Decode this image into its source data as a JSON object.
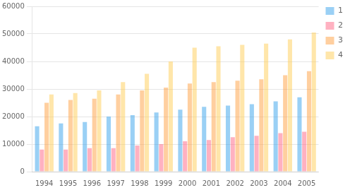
{
  "chart_data": {
    "type": "bar",
    "categories": [
      "1994",
      "1995",
      "1996",
      "1997",
      "1998",
      "1999",
      "2000",
      "2001",
      "2002",
      "2003",
      "2004",
      "2005"
    ],
    "series": [
      {
        "name": "1",
        "values": [
          16500,
          17500,
          18000,
          20000,
          20500,
          21500,
          22500,
          23500,
          24000,
          24500,
          25500,
          27000
        ]
      },
      {
        "name": "2",
        "values": [
          8000,
          8000,
          8500,
          8500,
          9500,
          10000,
          11000,
          11500,
          12500,
          13000,
          14000,
          14500
        ]
      },
      {
        "name": "3",
        "values": [
          25000,
          26000,
          26500,
          28000,
          29500,
          30500,
          32000,
          32500,
          33000,
          33500,
          35000,
          36500
        ]
      },
      {
        "name": "4",
        "values": [
          28000,
          28500,
          29500,
          32500,
          35500,
          40000,
          45000,
          45500,
          46000,
          46500,
          48000,
          50500
        ]
      }
    ],
    "ylim": [
      0,
      60000
    ],
    "yticks": [
      0,
      10000,
      20000,
      30000,
      40000,
      50000,
      60000
    ],
    "grid": true,
    "legend": "upper right"
  }
}
